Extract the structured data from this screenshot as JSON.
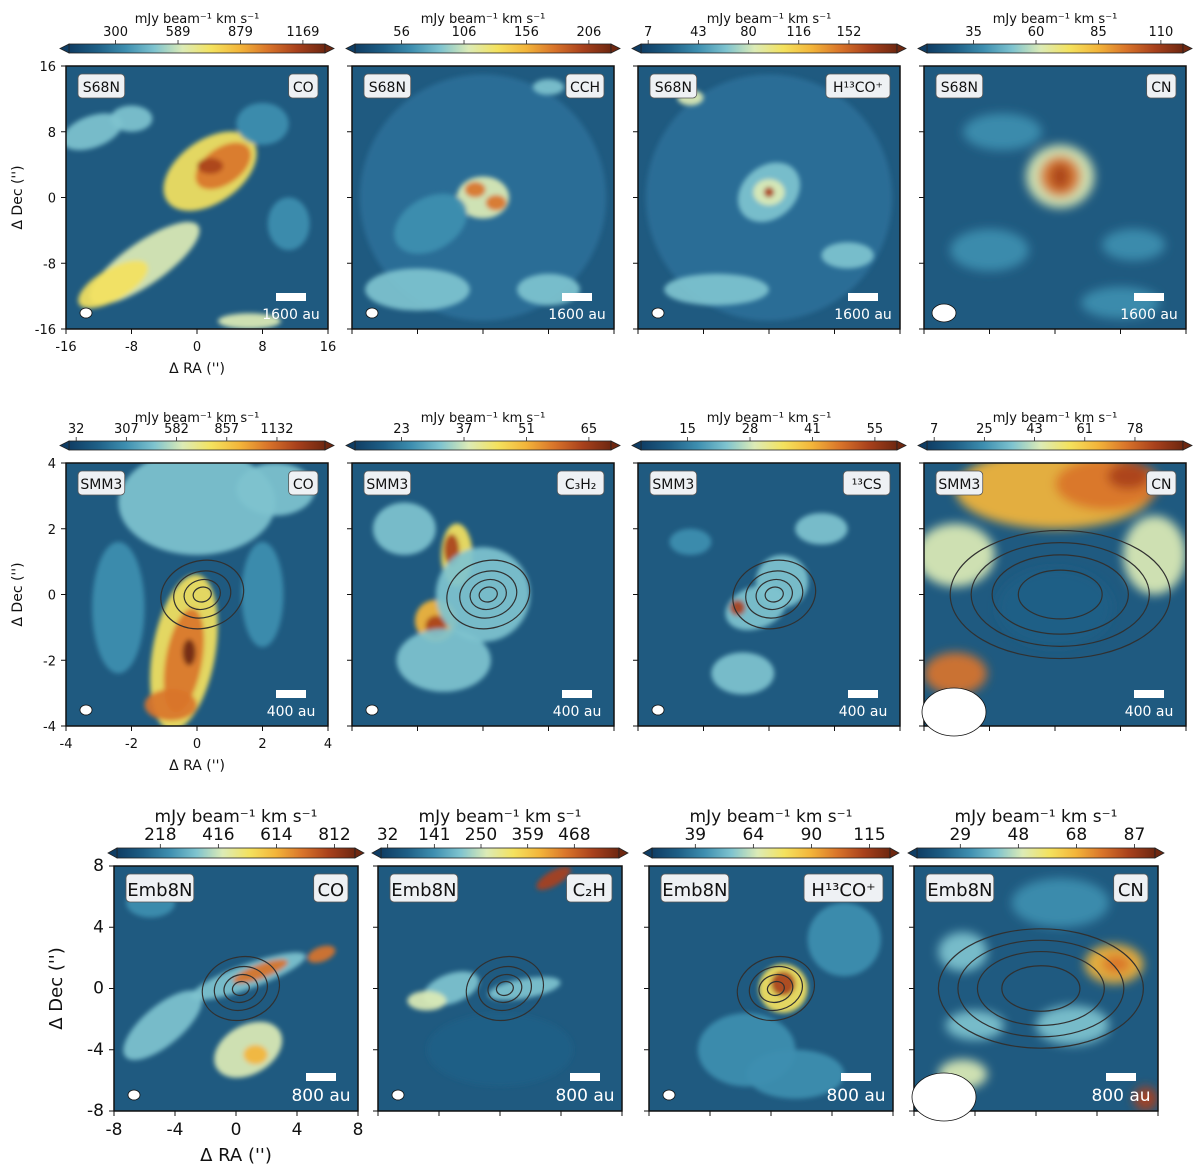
{
  "figure": {
    "cbar_label": "mJy beam⁻¹ km s⁻¹",
    "xlabel": "Δ RA ('')",
    "ylabel": "Δ Dec ('')"
  },
  "colors": {
    "background_map": "#1f5a80",
    "colormap": [
      "#0f3d64",
      "#1e5f86",
      "#3e8fb0",
      "#7ec3cf",
      "#dcebb6",
      "#f4e25e",
      "#f3b53a",
      "#d9742a",
      "#a9411c",
      "#6e2710"
    ],
    "contour": "#303030"
  },
  "chart_data": [
    {
      "type": "heatmap",
      "row": 0,
      "col": 0,
      "source_label": "S68N",
      "line_label": "CO",
      "ticks": [
        "300",
        "589",
        "879",
        "1169"
      ],
      "scale_bar": "1600 au",
      "xlim": [
        -16,
        16
      ],
      "ylim": [
        -16,
        16
      ],
      "xticks": [
        "-16",
        "-8",
        "0",
        "8",
        "16"
      ],
      "yticks": [
        "16",
        "8",
        "0",
        "-8",
        "-16"
      ],
      "beam": "small",
      "contours": false
    },
    {
      "type": "heatmap",
      "row": 0,
      "col": 1,
      "source_label": "S68N",
      "line_label": "CCH",
      "ticks": [
        "56",
        "106",
        "156",
        "206"
      ],
      "scale_bar": "1600 au",
      "beam": "small",
      "contours": false
    },
    {
      "type": "heatmap",
      "row": 0,
      "col": 2,
      "source_label": "S68N",
      "line_label": "H¹³CO⁺",
      "ticks": [
        "7",
        "43",
        "80",
        "116",
        "152"
      ],
      "scale_bar": "1600 au",
      "beam": "small",
      "contours": false
    },
    {
      "type": "heatmap",
      "row": 0,
      "col": 3,
      "source_label": "S68N",
      "line_label": "CN",
      "ticks": [
        "35",
        "60",
        "85",
        "110"
      ],
      "scale_bar": "1600 au",
      "beam": "medium",
      "contours": false
    },
    {
      "type": "heatmap",
      "row": 1,
      "col": 0,
      "source_label": "SMM3",
      "line_label": "CO",
      "ticks": [
        "32",
        "307",
        "582",
        "857",
        "1132"
      ],
      "scale_bar": "400 au",
      "xlim": [
        -4,
        4
      ],
      "ylim": [
        -4,
        4
      ],
      "xticks": [
        "-4",
        "-2",
        "0",
        "2",
        "4"
      ],
      "yticks": [
        "4",
        "2",
        "0",
        "-2",
        "-4"
      ],
      "beam": "small",
      "contours": true
    },
    {
      "type": "heatmap",
      "row": 1,
      "col": 1,
      "source_label": "SMM3",
      "line_label": "C₃H₂",
      "ticks": [
        "23",
        "37",
        "51",
        "65"
      ],
      "scale_bar": "400 au",
      "beam": "small",
      "contours": true
    },
    {
      "type": "heatmap",
      "row": 1,
      "col": 2,
      "source_label": "SMM3",
      "line_label": "¹³CS",
      "ticks": [
        "15",
        "28",
        "41",
        "55"
      ],
      "scale_bar": "400 au",
      "beam": "small",
      "contours": true
    },
    {
      "type": "heatmap",
      "row": 1,
      "col": 3,
      "source_label": "SMM3",
      "line_label": "CN",
      "ticks": [
        "7",
        "25",
        "43",
        "61",
        "78"
      ],
      "scale_bar": "400 au",
      "beam": "large",
      "contours": true
    },
    {
      "type": "heatmap",
      "row": 2,
      "col": 0,
      "source_label": "Emb8N",
      "line_label": "CO",
      "ticks": [
        "218",
        "416",
        "614",
        "812"
      ],
      "scale_bar": "800 au",
      "xlim": [
        -8,
        8
      ],
      "ylim": [
        -8,
        8
      ],
      "xticks": [
        "-8",
        "-4",
        "0",
        "4",
        "8"
      ],
      "yticks": [
        "8",
        "4",
        "0",
        "-4",
        "-8"
      ],
      "beam": "small",
      "contours": true
    },
    {
      "type": "heatmap",
      "row": 2,
      "col": 1,
      "source_label": "Emb8N",
      "line_label": "C₂H",
      "ticks": [
        "32",
        "141",
        "250",
        "359",
        "468"
      ],
      "scale_bar": "800 au",
      "beam": "small",
      "contours": true
    },
    {
      "type": "heatmap",
      "row": 2,
      "col": 2,
      "source_label": "Emb8N",
      "line_label": "H¹³CO⁺",
      "ticks": [
        "39",
        "64",
        "90",
        "115"
      ],
      "scale_bar": "800 au",
      "beam": "small",
      "contours": true
    },
    {
      "type": "heatmap",
      "row": 2,
      "col": 3,
      "source_label": "Emb8N",
      "line_label": "CN",
      "ticks": [
        "29",
        "48",
        "68",
        "87"
      ],
      "scale_bar": "800 au",
      "beam": "large",
      "contours": true
    }
  ]
}
